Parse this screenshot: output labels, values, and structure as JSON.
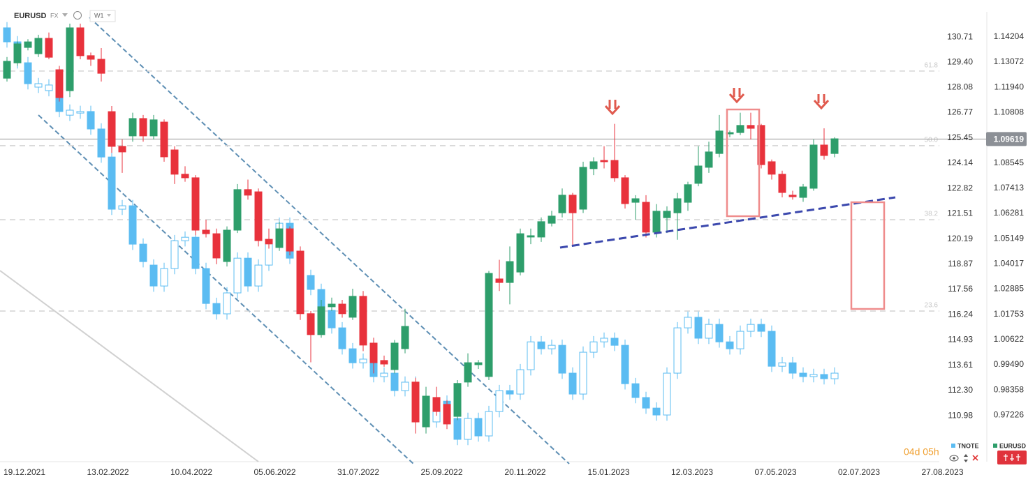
{
  "header": {
    "symbol": "EURUSD",
    "market": "FX",
    "interval": "W1"
  },
  "chart_data": {
    "type": "candlestick",
    "x_labels": [
      "19.12.2021",
      "13.02.2022",
      "10.04.2022",
      "05.06.2022",
      "31.07.2022",
      "25.09.2022",
      "20.11.2022",
      "15.01.2023",
      "12.03.2023",
      "07.05.2023",
      "02.07.2023",
      "27.08.2023"
    ],
    "ylim": [
      108.66,
      132.64
    ],
    "yticks": [
      130.71,
      {
        "value": 129.4,
        "label": "129.40"
      },
      128.08,
      126.77,
      125.45,
      124.14,
      122.82,
      121.51,
      120.19,
      118.87,
      117.56,
      116.24,
      114.93,
      113.61,
      {
        "value": 112.3,
        "label": "112.30"
      },
      110.98
    ],
    "y2lim": [
      0.952,
      1.1586
    ],
    "y2ticks": [
      1.14204,
      1.13072,
      {
        "value": 1.1194,
        "label": "1.11940"
      },
      1.10808,
      1.08545,
      1.07413,
      1.06281,
      1.05149,
      1.04017,
      1.02885,
      1.01753,
      1.00622,
      {
        "value": 0.9949,
        "label": "0.99490"
      },
      0.98358,
      0.97226
    ],
    "series": [
      {
        "name": "TNOTE",
        "color": "#5bbcf2",
        "hollow_up": true,
        "ohlc": [
          [
            131.19,
            131.49,
            130.16,
            130.46
          ],
          [
            130.46,
            130.76,
            129.07,
            129.37
          ],
          [
            129.37,
            129.67,
            127.98,
            128.28
          ],
          [
            128.1,
            128.58,
            127.8,
            128.28
          ],
          [
            127.92,
            128.51,
            127.62,
            128.21
          ],
          [
            128.28,
            128.58,
            126.53,
            126.83
          ],
          [
            126.64,
            127.2,
            126.34,
            126.9
          ],
          [
            126.75,
            127.13,
            126.45,
            126.83
          ],
          [
            126.83,
            127.13,
            125.62,
            125.92
          ],
          [
            125.92,
            126.22,
            124.16,
            124.46
          ],
          [
            124.46,
            124.76,
            121.44,
            121.74
          ],
          [
            121.74,
            122.22,
            121.44,
            121.92
          ],
          [
            121.92,
            122.22,
            119.62,
            119.92
          ],
          [
            119.92,
            120.22,
            118.71,
            119.01
          ],
          [
            118.83,
            119.13,
            117.44,
            117.74
          ],
          [
            117.74,
            118.95,
            117.44,
            118.65
          ],
          [
            118.65,
            120.4,
            118.35,
            120.1
          ],
          [
            120.1,
            120.58,
            119.8,
            120.28
          ],
          [
            120.28,
            120.58,
            118.35,
            118.65
          ],
          [
            118.65,
            118.95,
            116.53,
            116.83
          ],
          [
            116.83,
            117.13,
            115.99,
            116.29
          ],
          [
            116.29,
            117.68,
            115.99,
            117.38
          ],
          [
            117.38,
            119.49,
            117.08,
            119.19
          ],
          [
            119.19,
            119.49,
            117.44,
            117.74
          ],
          [
            117.74,
            119.13,
            117.44,
            118.83
          ],
          [
            118.83,
            120.4,
            118.53,
            120.1
          ],
          [
            120.1,
            121.31,
            119.8,
            121.01
          ],
          [
            121.01,
            121.31,
            118.89,
            119.19
          ],
          [
            119.19,
            119.49,
            117.99,
            118.29
          ],
          [
            118.29,
            118.59,
            117.26,
            117.56
          ],
          [
            117.56,
            117.86,
            116.17,
            116.47
          ],
          [
            116.47,
            116.77,
            115.26,
            115.56
          ],
          [
            115.56,
            115.86,
            114.17,
            114.47
          ],
          [
            114.47,
            114.77,
            113.44,
            113.74
          ],
          [
            113.74,
            114.23,
            113.44,
            113.93
          ],
          [
            113.93,
            114.23,
            112.72,
            113.02
          ],
          [
            113.02,
            113.5,
            112.72,
            113.2
          ],
          [
            113.2,
            113.5,
            111.99,
            112.29
          ],
          [
            112.29,
            113.03,
            111.99,
            112.73
          ],
          [
            112.73,
            113.03,
            111.63,
            111.93
          ],
          [
            111.93,
            112.23,
            110.36,
            110.66
          ],
          [
            110.66,
            112.04,
            110.36,
            111.74
          ],
          [
            111.74,
            112.04,
            110.54,
            110.84
          ],
          [
            110.84,
            111.14,
            109.45,
            109.75
          ],
          [
            109.75,
            111.14,
            109.45,
            110.84
          ],
          [
            110.84,
            111.14,
            109.63,
            109.93
          ],
          [
            109.93,
            111.5,
            109.63,
            111.2
          ],
          [
            111.2,
            112.59,
            110.9,
            112.29
          ],
          [
            112.29,
            112.59,
            111.81,
            112.11
          ],
          [
            112.11,
            113.68,
            111.81,
            113.38
          ],
          [
            113.38,
            115.13,
            113.08,
            114.83
          ],
          [
            114.83,
            115.13,
            114.17,
            114.47
          ],
          [
            114.47,
            114.95,
            114.17,
            114.65
          ],
          [
            114.65,
            114.95,
            112.9,
            113.2
          ],
          [
            113.2,
            113.5,
            111.81,
            112.11
          ],
          [
            112.11,
            114.59,
            111.81,
            114.29
          ],
          [
            114.29,
            115.13,
            113.99,
            114.83
          ],
          [
            114.83,
            115.32,
            114.53,
            115.02
          ],
          [
            115.02,
            115.32,
            114.35,
            114.65
          ],
          [
            114.65,
            114.95,
            112.35,
            112.65
          ],
          [
            112.65,
            112.95,
            111.63,
            111.93
          ],
          [
            111.93,
            112.23,
            111.08,
            111.38
          ],
          [
            111.38,
            111.68,
            110.72,
            111.02
          ],
          [
            111.02,
            113.5,
            110.72,
            113.2
          ],
          [
            113.2,
            115.86,
            112.9,
            115.56
          ],
          [
            115.56,
            116.41,
            115.26,
            116.11
          ],
          [
            116.11,
            116.41,
            114.72,
            115.02
          ],
          [
            115.02,
            116.04,
            114.72,
            115.74
          ],
          [
            115.74,
            116.04,
            114.53,
            114.83
          ],
          [
            114.83,
            115.13,
            114.17,
            114.47
          ],
          [
            114.47,
            115.68,
            114.17,
            115.38
          ],
          [
            115.38,
            116.04,
            115.08,
            115.74
          ],
          [
            115.74,
            116.04,
            115.08,
            115.38
          ],
          [
            115.38,
            115.68,
            113.26,
            113.56
          ],
          [
            113.56,
            114.04,
            113.26,
            113.74
          ],
          [
            113.74,
            114.04,
            112.9,
            113.2
          ],
          [
            113.2,
            113.5,
            112.72,
            113.02
          ],
          [
            113.02,
            113.43,
            112.72,
            113.13
          ],
          [
            113.13,
            113.43,
            112.61,
            112.91
          ],
          [
            112.91,
            113.5,
            112.61,
            113.2
          ]
        ]
      },
      {
        "name": "EURUSD",
        "axis": "y2",
        "color": "#2e9e6b",
        "down_color": "#e8323c",
        "ohlc": [
          [
            1.1235,
            1.133,
            1.122,
            1.1311
          ],
          [
            1.1304,
            1.14,
            1.129,
            1.1389
          ],
          [
            1.1373,
            1.141,
            1.136,
            1.1398
          ],
          [
            1.1345,
            1.143,
            1.133,
            1.1414
          ],
          [
            1.1414,
            1.144,
            1.132,
            1.1329
          ],
          [
            1.1273,
            1.129,
            1.113,
            1.1148
          ],
          [
            1.1179,
            1.148,
            1.115,
            1.1461
          ],
          [
            1.1461,
            1.148,
            1.132,
            1.1336
          ],
          [
            1.1336,
            1.135,
            1.129,
            1.132
          ],
          [
            1.132,
            1.137,
            1.122,
            1.1257
          ],
          [
            1.1085,
            1.111,
            1.09,
            1.0929
          ],
          [
            1.0929,
            1.096,
            1.081,
            1.0904
          ],
          [
            1.0976,
            1.108,
            1.095,
            1.1054
          ],
          [
            1.1054,
            1.107,
            1.095,
            1.0976
          ],
          [
            1.0976,
            1.107,
            1.096,
            1.1048
          ],
          [
            1.1038,
            1.105,
            1.086,
            1.0882
          ],
          [
            1.0913,
            1.093,
            1.076,
            1.0804
          ],
          [
            1.0804,
            1.084,
            1.077,
            1.0788
          ],
          [
            1.0788,
            1.08,
            1.053,
            1.0553
          ],
          [
            1.0553,
            1.06,
            1.052,
            1.0537
          ],
          [
            1.0537,
            1.056,
            1.04,
            1.0428
          ],
          [
            1.0412,
            1.057,
            1.039,
            1.0553
          ],
          [
            1.0553,
            1.076,
            1.054,
            1.0735
          ],
          [
            1.0735,
            1.078,
            1.069,
            1.071
          ],
          [
            1.0725,
            1.074,
            1.048,
            1.0506
          ],
          [
            1.0512,
            1.056,
            1.047,
            1.0491
          ],
          [
            1.0475,
            1.059,
            1.046,
            1.0559
          ],
          [
            1.0559,
            1.057,
            1.044,
            1.0459
          ],
          [
            1.0459,
            1.048,
            1.015,
            1.0178
          ],
          [
            1.0178,
            1.019,
            0.996,
            1.0084
          ],
          [
            1.0084,
            1.024,
            1.007,
            1.0209
          ],
          [
            1.0209,
            1.025,
            1.019,
            1.0221
          ],
          [
            1.0221,
            1.024,
            1.016,
            1.0178
          ],
          [
            1.0162,
            1.029,
            1.015,
            1.0256
          ],
          [
            1.0256,
            1.028,
            1.001,
            1.0037
          ],
          [
            1.0046,
            1.007,
            0.991,
            0.9958
          ],
          [
            0.9968,
            0.999,
            0.994,
            0.9952
          ],
          [
            0.9927,
            1.006,
            0.991,
            1.0046
          ],
          [
            1.0021,
            1.02,
            1.0,
            1.0121
          ],
          [
            0.9871,
            0.989,
            0.964,
            0.9692
          ],
          [
            0.967,
            0.985,
            0.964,
            0.9808
          ],
          [
            0.9802,
            0.985,
            0.972,
            0.9739
          ],
          [
            0.9771,
            0.979,
            0.966,
            0.9683
          ],
          [
            0.9717,
            0.988,
            0.97,
            0.9865
          ],
          [
            0.9871,
            1.0,
            0.985,
            0.9958
          ],
          [
            0.9949,
            0.997,
            0.993,
            0.9958
          ],
          [
            0.9896,
            1.037,
            0.988,
            1.0359
          ],
          [
            1.0334,
            1.042,
            1.028,
            1.0318
          ],
          [
            1.0318,
            1.048,
            1.022,
            1.0412
          ],
          [
            1.0365,
            1.056,
            1.035,
            1.0537
          ],
          [
            1.0522,
            1.056,
            1.049,
            1.0528
          ],
          [
            1.0522,
            1.061,
            1.05,
            1.0591
          ],
          [
            1.0584,
            1.064,
            1.057,
            1.0616
          ],
          [
            1.0631,
            1.074,
            1.061,
            1.071
          ],
          [
            1.071,
            1.072,
            1.048,
            1.0631
          ],
          [
            1.0647,
            1.086,
            1.063,
            1.0835
          ],
          [
            1.0829,
            1.088,
            1.08,
            1.086
          ],
          [
            1.0866,
            1.093,
            1.083,
            1.086
          ],
          [
            1.0866,
            1.103,
            1.077,
            1.0788
          ],
          [
            1.0788,
            1.08,
            1.065,
            1.0672
          ],
          [
            1.0678,
            1.071,
            1.06,
            1.0694
          ],
          [
            1.0678,
            1.071,
            1.052,
            1.0544
          ],
          [
            1.0544,
            1.067,
            1.052,
            1.0638
          ],
          [
            1.0609,
            1.066,
            1.054,
            1.0638
          ],
          [
            1.0631,
            1.072,
            1.051,
            1.0694
          ],
          [
            1.0678,
            1.077,
            1.064,
            1.0757
          ],
          [
            1.0763,
            1.093,
            1.075,
            1.0841
          ],
          [
            1.0835,
            1.095,
            1.081,
            1.0904
          ],
          [
            1.0897,
            1.107,
            1.088,
            1.0998
          ],
          [
            1.0985,
            1.1,
            1.097,
            1.0991
          ],
          [
            1.0991,
            1.108,
            1.098,
            1.1023
          ],
          [
            1.1023,
            1.108,
            1.096,
            1.101
          ],
          [
            1.1023,
            1.103,
            1.083,
            1.0847
          ],
          [
            1.086,
            1.087,
            1.078,
            1.0804
          ],
          [
            1.0804,
            1.082,
            1.07,
            1.0722
          ],
          [
            1.071,
            1.073,
            1.069,
            1.0703
          ],
          [
            1.07,
            1.076,
            1.068,
            1.0747
          ],
          [
            1.0741,
            1.096,
            1.073,
            1.0935
          ],
          [
            1.0935,
            1.101,
            1.087,
            1.0888
          ],
          [
            1.0897,
            1.097,
            1.088,
            1.0963
          ]
        ]
      }
    ],
    "fib_levels": [
      {
        "label": "61.8",
        "price": 1.1267
      },
      {
        "label": "50.0",
        "price": 1.0932
      },
      {
        "label": "38.2",
        "price": 1.06
      },
      {
        "label": "23.6",
        "price": 1.019
      }
    ],
    "last_price": 1.09619,
    "countdown": "04d 05h"
  }
}
